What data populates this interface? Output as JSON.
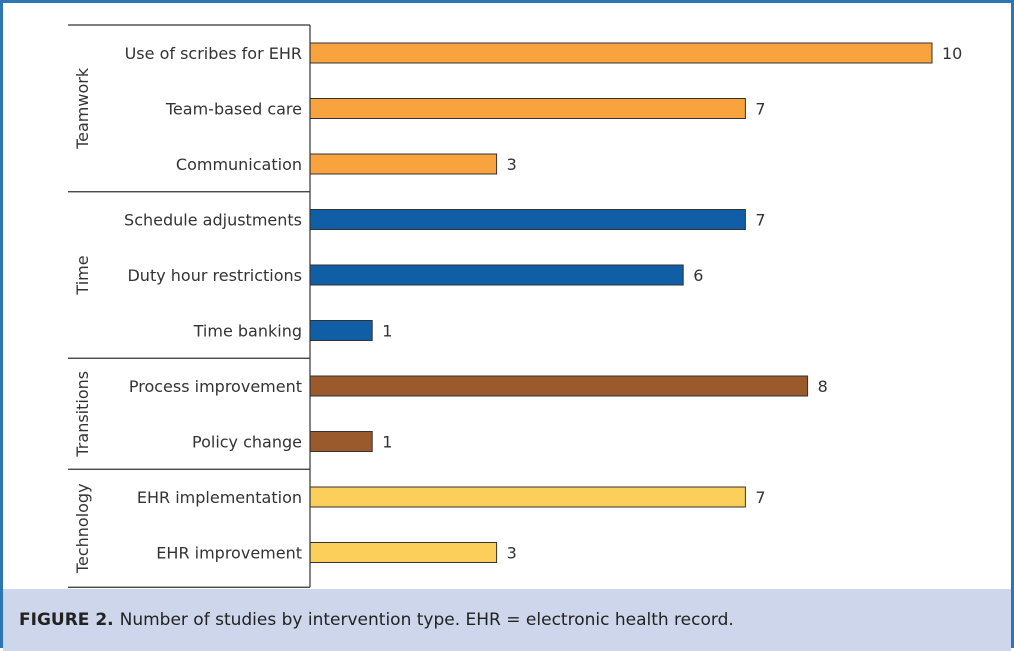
{
  "chart_data": {
    "type": "bar",
    "orientation": "horizontal",
    "groups": [
      {
        "name": "Teamwork",
        "color": "#f9a33e",
        "categories": [
          "Use of scribes for EHR",
          "Team-based care",
          "Communication"
        ],
        "values": [
          10,
          7,
          3
        ],
        "value_labels": [
          "10",
          "7",
          "3"
        ]
      },
      {
        "name": "Time",
        "color": "#0f5ea6",
        "categories": [
          "Schedule adjustments",
          "Duty hour restrictions",
          "Time banking"
        ],
        "values": [
          7,
          6,
          1
        ],
        "value_labels": [
          "7",
          "6",
          "1"
        ]
      },
      {
        "name": "Transitions",
        "color": "#9a5a2b",
        "categories": [
          "Process improvement",
          "Policy change"
        ],
        "values": [
          8,
          1
        ],
        "value_labels": [
          "8",
          "1"
        ]
      },
      {
        "name": "Technology",
        "color": "#fcce5a",
        "categories": [
          "EHR implementation",
          "EHR improvement"
        ],
        "values": [
          7,
          3
        ],
        "value_labels": [
          "7",
          "3"
        ]
      }
    ],
    "xlim": [
      0,
      10
    ],
    "grid": false
  },
  "caption": {
    "label": "FIGURE 2.",
    "text": "Number of studies by intervention type. EHR = electronic health record."
  }
}
